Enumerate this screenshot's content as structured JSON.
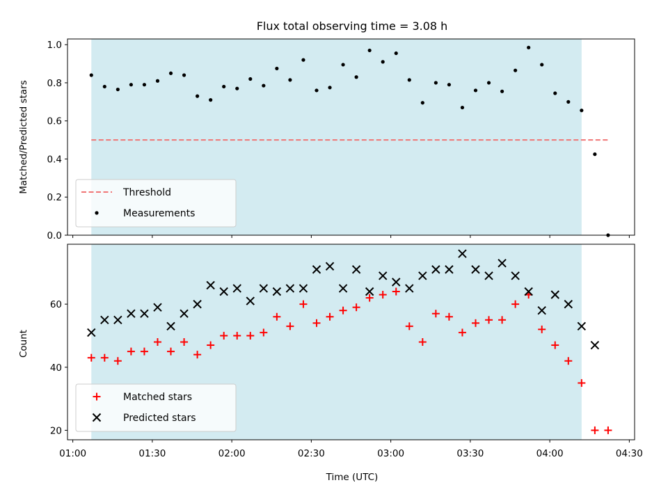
{
  "chart_data": [
    {
      "type": "scatter",
      "title": "Flux total observing time = 3.08 h",
      "ylabel": "Matched/Predicted stars",
      "xlabel": "",
      "ylim": [
        0,
        1.03
      ],
      "yticks": [
        0,
        0.2,
        0.4,
        0.6,
        0.8,
        1.0
      ],
      "ytick_labels": [
        "0.0",
        "0.2",
        "0.4",
        "0.6",
        "0.8",
        "1.0"
      ],
      "shaded_span": {
        "x_from": "01:07",
        "x_to": "04:12",
        "color": "#d3ebf1"
      },
      "legend_position": "lower-left",
      "threshold": {
        "name": "Threshold",
        "y": 0.5,
        "x_from": "01:07",
        "x_to": "04:22",
        "color": "#f07575"
      },
      "series": [
        {
          "name": "Measurements",
          "marker": "dot",
          "color": "#000000",
          "points": [
            [
              "01:07",
              0.84
            ],
            [
              "01:12",
              0.78
            ],
            [
              "01:17",
              0.765
            ],
            [
              "01:22",
              0.79
            ],
            [
              "01:27",
              0.79
            ],
            [
              "01:32",
              0.81
            ],
            [
              "01:37",
              0.85
            ],
            [
              "01:42",
              0.84
            ],
            [
              "01:47",
              0.73
            ],
            [
              "01:52",
              0.71
            ],
            [
              "01:57",
              0.78
            ],
            [
              "02:02",
              0.77
            ],
            [
              "02:07",
              0.82
            ],
            [
              "02:12",
              0.785
            ],
            [
              "02:17",
              0.875
            ],
            [
              "02:22",
              0.815
            ],
            [
              "02:27",
              0.92
            ],
            [
              "02:32",
              0.76
            ],
            [
              "02:37",
              0.775
            ],
            [
              "02:42",
              0.895
            ],
            [
              "02:47",
              0.83
            ],
            [
              "02:52",
              0.97
            ],
            [
              "02:57",
              0.91
            ],
            [
              "03:02",
              0.955
            ],
            [
              "03:07",
              0.815
            ],
            [
              "03:12",
              0.695
            ],
            [
              "03:17",
              0.8
            ],
            [
              "03:22",
              0.79
            ],
            [
              "03:27",
              0.67
            ],
            [
              "03:32",
              0.76
            ],
            [
              "03:37",
              0.8
            ],
            [
              "03:42",
              0.755
            ],
            [
              "03:47",
              0.865
            ],
            [
              "03:52",
              0.985
            ],
            [
              "03:57",
              0.895
            ],
            [
              "04:02",
              0.745
            ],
            [
              "04:07",
              0.7
            ],
            [
              "04:12",
              0.655
            ],
            [
              "04:17",
              0.425
            ],
            [
              "04:22",
              0.0
            ]
          ]
        }
      ]
    },
    {
      "type": "scatter",
      "title": "",
      "xlabel": "Time (UTC)",
      "ylabel": "Count",
      "ylim": [
        17,
        79
      ],
      "yticks": [
        20,
        40,
        60
      ],
      "ytick_labels": [
        "20",
        "40",
        "60"
      ],
      "xlim": [
        "00:58",
        "04:32"
      ],
      "xticks": [
        "01:00",
        "01:30",
        "02:00",
        "02:30",
        "03:00",
        "03:30",
        "04:00",
        "04:30"
      ],
      "xtick_labels": [
        "01:00",
        "01:30",
        "02:00",
        "02:30",
        "03:00",
        "03:30",
        "04:00",
        "04:30"
      ],
      "shaded_span": {
        "x_from": "01:07",
        "x_to": "04:12",
        "color": "#d3ebf1"
      },
      "legend_position": "lower-left",
      "series": [
        {
          "name": "Matched stars",
          "marker": "plus",
          "color": "#ff0000",
          "points": [
            [
              "01:07",
              43
            ],
            [
              "01:12",
              43
            ],
            [
              "01:17",
              42
            ],
            [
              "01:22",
              45
            ],
            [
              "01:27",
              45
            ],
            [
              "01:32",
              48
            ],
            [
              "01:37",
              45
            ],
            [
              "01:42",
              48
            ],
            [
              "01:47",
              44
            ],
            [
              "01:52",
              47
            ],
            [
              "01:57",
              50
            ],
            [
              "02:02",
              50
            ],
            [
              "02:07",
              50
            ],
            [
              "02:12",
              51
            ],
            [
              "02:17",
              56
            ],
            [
              "02:22",
              53
            ],
            [
              "02:27",
              60
            ],
            [
              "02:32",
              54
            ],
            [
              "02:37",
              56
            ],
            [
              "02:42",
              58
            ],
            [
              "02:47",
              59
            ],
            [
              "02:52",
              62
            ],
            [
              "02:57",
              63
            ],
            [
              "03:02",
              64
            ],
            [
              "03:07",
              53
            ],
            [
              "03:12",
              48
            ],
            [
              "03:17",
              57
            ],
            [
              "03:22",
              56
            ],
            [
              "03:27",
              51
            ],
            [
              "03:32",
              54
            ],
            [
              "03:37",
              55
            ],
            [
              "03:42",
              55
            ],
            [
              "03:47",
              60
            ],
            [
              "03:52",
              63
            ],
            [
              "03:57",
              52
            ],
            [
              "04:02",
              47
            ],
            [
              "04:07",
              42
            ],
            [
              "04:12",
              35
            ],
            [
              "04:17",
              20
            ],
            [
              "04:22",
              20
            ]
          ]
        },
        {
          "name": "Predicted stars",
          "marker": "x",
          "color": "#000000",
          "points": [
            [
              "01:07",
              51
            ],
            [
              "01:12",
              55
            ],
            [
              "01:17",
              55
            ],
            [
              "01:22",
              57
            ],
            [
              "01:27",
              57
            ],
            [
              "01:32",
              59
            ],
            [
              "01:37",
              53
            ],
            [
              "01:42",
              57
            ],
            [
              "01:47",
              60
            ],
            [
              "01:52",
              66
            ],
            [
              "01:57",
              64
            ],
            [
              "02:02",
              65
            ],
            [
              "02:07",
              61
            ],
            [
              "02:12",
              65
            ],
            [
              "02:17",
              64
            ],
            [
              "02:22",
              65
            ],
            [
              "02:27",
              65
            ],
            [
              "02:32",
              71
            ],
            [
              "02:37",
              72
            ],
            [
              "02:42",
              65
            ],
            [
              "02:47",
              71
            ],
            [
              "02:52",
              64
            ],
            [
              "02:57",
              69
            ],
            [
              "03:02",
              67
            ],
            [
              "03:07",
              65
            ],
            [
              "03:12",
              69
            ],
            [
              "03:17",
              71
            ],
            [
              "03:22",
              71
            ],
            [
              "03:27",
              76
            ],
            [
              "03:32",
              71
            ],
            [
              "03:37",
              69
            ],
            [
              "03:42",
              73
            ],
            [
              "03:47",
              69
            ],
            [
              "03:52",
              64
            ],
            [
              "03:57",
              58
            ],
            [
              "04:02",
              63
            ],
            [
              "04:07",
              60
            ],
            [
              "04:12",
              53
            ],
            [
              "04:17",
              47
            ]
          ]
        }
      ]
    }
  ]
}
